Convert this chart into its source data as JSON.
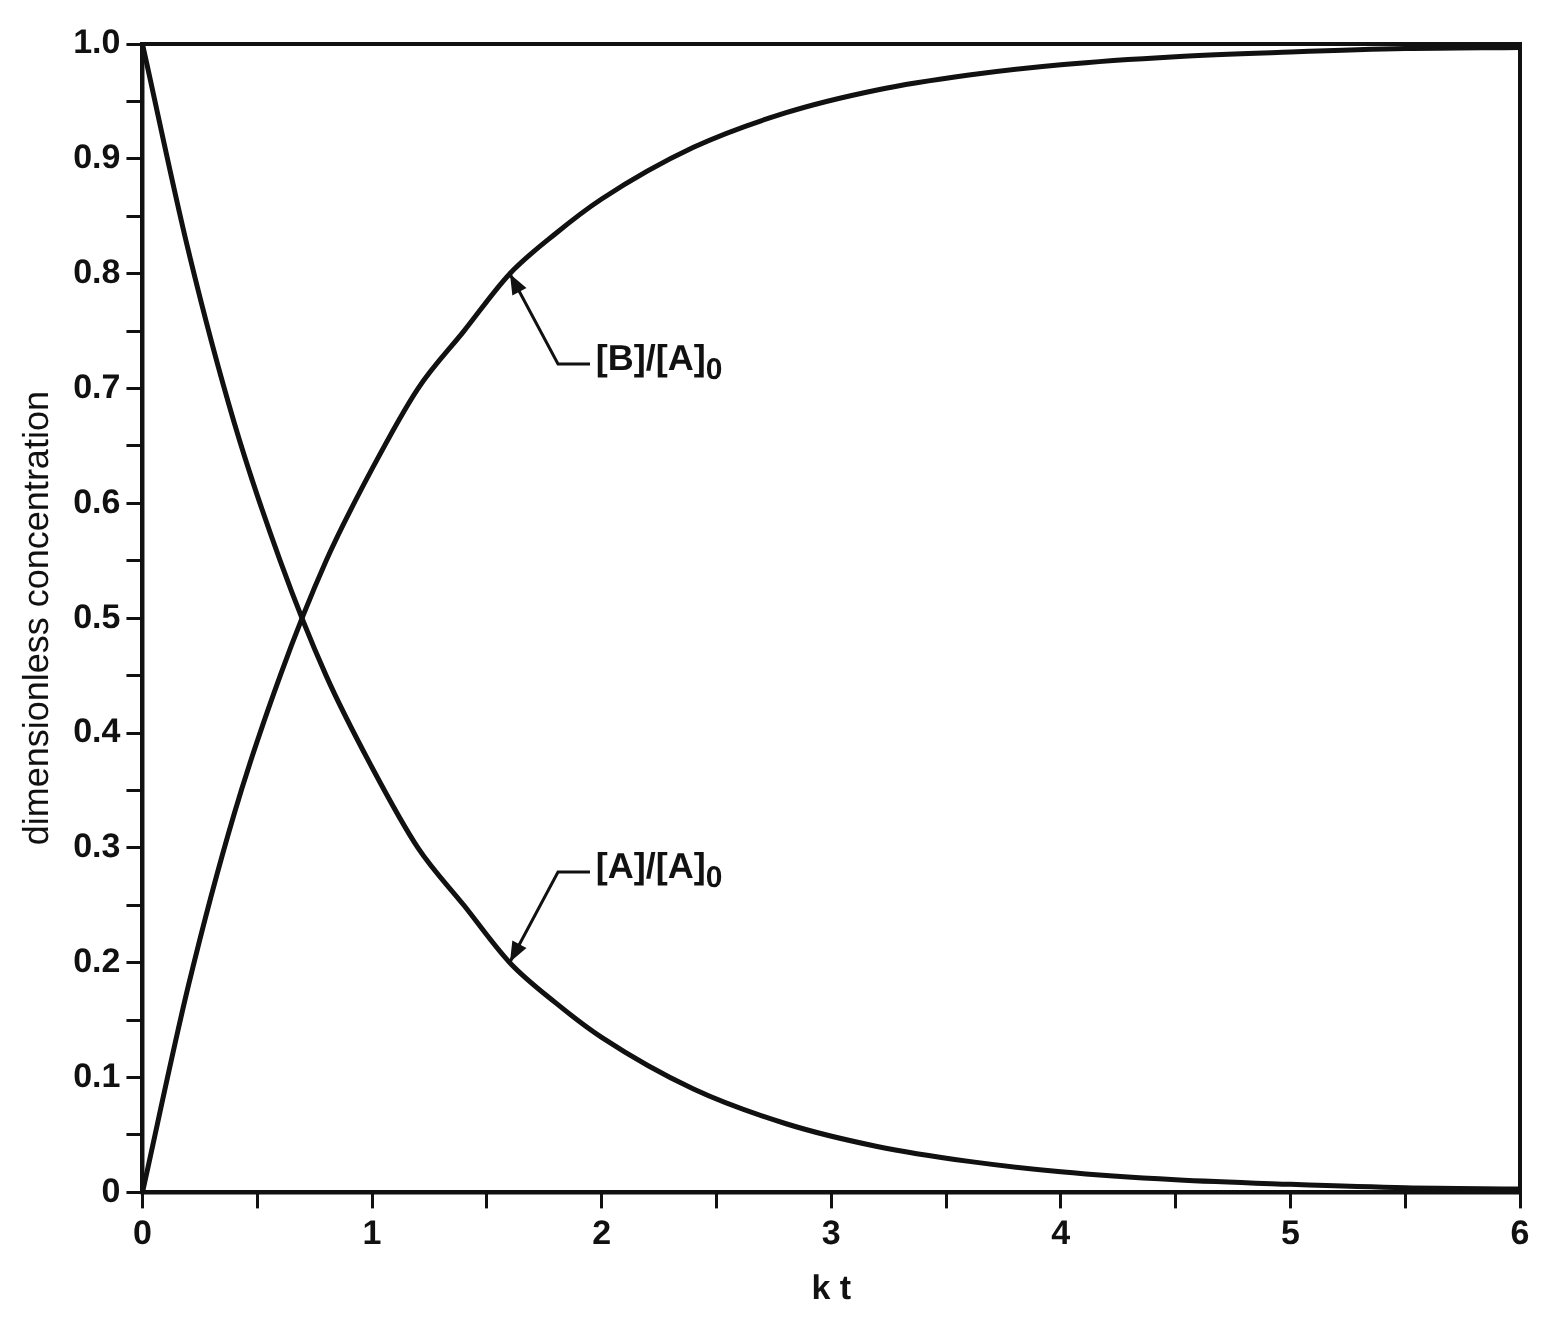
{
  "chart_data": {
    "type": "line",
    "xlabel": "k t",
    "ylabel": "dimensionless concentration",
    "x": [
      0,
      0.2,
      0.4,
      0.6,
      0.8,
      1,
      1.2,
      1.4,
      1.6,
      1.8,
      2,
      2.4,
      2.8,
      3.2,
      3.6,
      4,
      4.5,
      5,
      5.5,
      6
    ],
    "series": [
      {
        "name": "[A]/[A]$_{0}$",
        "color": "#111111",
        "values": [
          1,
          0.82,
          0.67,
          0.55,
          0.45,
          0.37,
          0.3,
          0.25,
          0.2,
          0.165,
          0.135,
          0.09,
          0.06,
          0.04,
          0.027,
          0.018,
          0.011,
          0.007,
          0.004,
          0.003
        ]
      },
      {
        "name": "[B]/[A]$_{0}$",
        "color": "#111111",
        "values": [
          0,
          0.18,
          0.33,
          0.45,
          0.55,
          0.63,
          0.7,
          0.75,
          0.8,
          0.835,
          0.865,
          0.91,
          0.94,
          0.96,
          0.973,
          0.982,
          0.989,
          0.993,
          0.996,
          0.997
        ]
      }
    ],
    "xlim": [
      0,
      6
    ],
    "xticks": [
      0,
      {
        "value": 0.5,
        "label": null
      },
      1,
      {
        "value": 1.5,
        "label": null
      },
      2,
      {
        "value": 2.5,
        "label": null
      },
      3,
      {
        "value": 3.5,
        "label": null
      },
      4,
      {
        "value": 4.5,
        "label": null
      },
      5,
      {
        "value": 5.5,
        "label": null
      },
      6
    ],
    "ylim": [
      0,
      1
    ],
    "yticks": [
      0,
      {
        "value": 0.05,
        "label": null
      },
      0.1,
      {
        "value": 0.15,
        "label": null
      },
      0.2,
      {
        "value": 0.25,
        "label": null
      },
      0.3,
      {
        "value": 0.35,
        "label": null
      },
      0.4,
      {
        "value": 0.45,
        "label": null
      },
      0.5,
      {
        "value": 0.55,
        "label": null
      },
      0.6,
      {
        "value": 0.65,
        "label": null
      },
      0.7,
      {
        "value": 0.75,
        "label": null
      },
      0.8,
      {
        "value": 0.85,
        "label": null
      },
      0.9,
      {
        "value": 0.95,
        "label": null
      },
      {
        "value": 1,
        "label": "1.0"
      }
    ],
    "grid": false,
    "legend": false,
    "marker": "none",
    "line_style": "solid"
  }
}
